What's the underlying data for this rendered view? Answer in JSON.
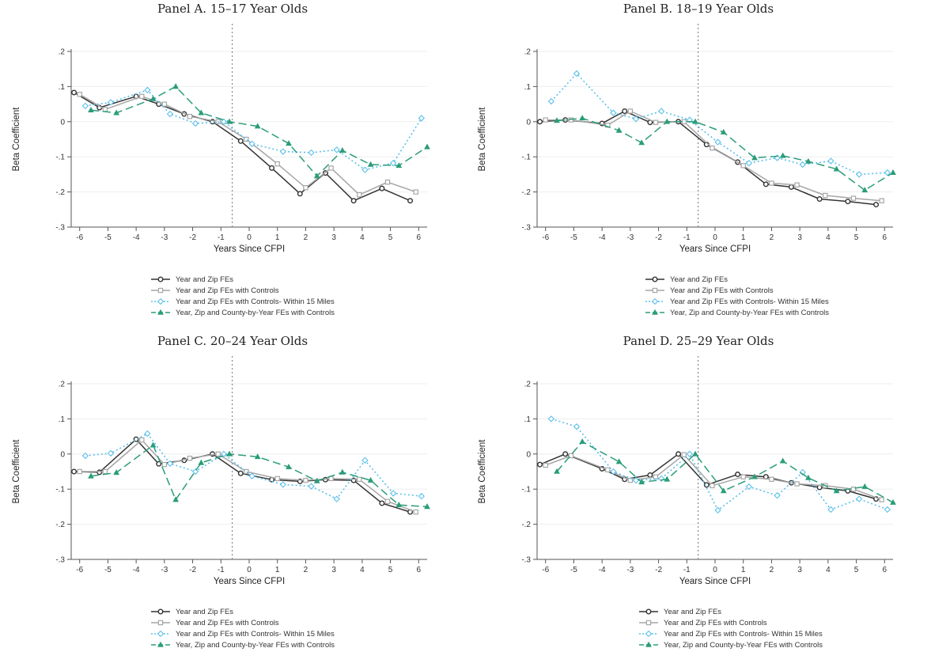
{
  "legend_labels": [
    "Year and Zip FEs",
    "Year and Zip FEs with Controls",
    "Year and Zip FEs with Controls- Within 15 Miles",
    "Year, Zip and County-by-Year FEs with Controls"
  ],
  "series_styles": [
    {
      "color": "#333333",
      "dash": "none",
      "marker": "circle"
    },
    {
      "color": "#a6a6a6",
      "dash": "none",
      "marker": "square"
    },
    {
      "color": "#5bc0eb",
      "dash": "2,3",
      "marker": "diamond"
    },
    {
      "color": "#2a9d7a",
      "dash": "10,5",
      "marker": "triangle"
    }
  ],
  "chart_data": [
    {
      "type": "line",
      "title": "Panel A. 15–17 Year Olds",
      "xlabel": "Years Since CFPI",
      "ylabel": "Beta Coefficient",
      "xlim": [
        -6.3,
        6.3
      ],
      "ylim": [
        -0.3,
        0.2
      ],
      "xticks": [
        "-6",
        "-5",
        "-4",
        "-3",
        "-2",
        "-1",
        "0",
        "1",
        "2",
        "3",
        "4",
        "5",
        "6"
      ],
      "yticks": [
        ".2",
        ".1",
        "0",
        "-.1",
        "-.2",
        "-.3"
      ],
      "vline": -0.6,
      "grid": true,
      "legend": "bottom",
      "series": [
        {
          "name": "Year and Zip FEs",
          "x": [
            -6.2,
            -5.3,
            -4.0,
            -3.2,
            -2.3,
            -1.3,
            -0.3,
            0.8,
            1.8,
            2.7,
            3.7,
            4.7,
            5.7
          ],
          "y": [
            0.083,
            0.04,
            0.072,
            0.05,
            0.022,
            0.0,
            -0.055,
            -0.132,
            -0.205,
            -0.146,
            -0.225,
            -0.19,
            -0.225
          ]
        },
        {
          "name": "Year and Zip FEs with Controls",
          "x": [
            -6.0,
            -5.1,
            -3.8,
            -3.0,
            -2.1,
            -1.1,
            -0.1,
            1.0,
            2.0,
            2.9,
            3.9,
            4.9,
            5.9
          ],
          "y": [
            0.078,
            0.035,
            0.072,
            0.05,
            0.015,
            0.0,
            -0.05,
            -0.12,
            -0.188,
            -0.132,
            -0.208,
            -0.172,
            -0.2
          ]
        },
        {
          "name": "Year and Zip FEs with Controls- Within 15 Miles",
          "x": [
            -5.8,
            -4.9,
            -3.6,
            -2.8,
            -1.9,
            -0.9,
            0.1,
            1.2,
            2.2,
            3.1,
            4.1,
            5.1,
            6.1
          ],
          "y": [
            0.045,
            0.055,
            0.09,
            0.022,
            -0.005,
            0.0,
            -0.063,
            -0.085,
            -0.088,
            -0.08,
            -0.137,
            -0.118,
            0.01
          ]
        },
        {
          "name": "Year, Zip and County-by-Year FEs with Controls",
          "x": [
            -5.6,
            -4.7,
            -3.4,
            -2.6,
            -1.7,
            -0.7,
            0.3,
            1.4,
            2.4,
            3.3,
            4.3,
            5.3,
            6.3
          ],
          "y": [
            0.033,
            0.025,
            0.065,
            0.1,
            0.025,
            0.0,
            -0.013,
            -0.062,
            -0.155,
            -0.082,
            -0.122,
            -0.125,
            -0.072
          ]
        }
      ]
    },
    {
      "type": "line",
      "title": "Panel B. 18–19 Year Olds",
      "xlabel": "Years Since CFPI",
      "ylabel": "Beta Coefficient",
      "xlim": [
        -6.3,
        6.3
      ],
      "ylim": [
        -0.3,
        0.2
      ],
      "xticks": [
        "-6",
        "-5",
        "-4",
        "-3",
        "-2",
        "-1",
        "0",
        "1",
        "2",
        "3",
        "4",
        "5",
        "6"
      ],
      "yticks": [
        ".2",
        ".1",
        "0",
        "-.1",
        "-.2",
        "-.3"
      ],
      "vline": -0.6,
      "grid": true,
      "legend": "bottom",
      "series": [
        {
          "name": "Year and Zip FEs",
          "x": [
            -6.2,
            -5.3,
            -4.0,
            -3.2,
            -2.3,
            -1.3,
            -0.3,
            0.8,
            1.8,
            2.7,
            3.7,
            4.7,
            5.7
          ],
          "y": [
            0.0,
            0.005,
            -0.005,
            0.03,
            -0.002,
            0.0,
            -0.065,
            -0.115,
            -0.178,
            -0.186,
            -0.22,
            -0.227,
            -0.236
          ]
        },
        {
          "name": "Year and Zip FEs with Controls",
          "x": [
            -6.0,
            -5.1,
            -3.8,
            -3.0,
            -2.1,
            -1.1,
            -0.1,
            1.0,
            2.0,
            2.9,
            3.9,
            4.9,
            5.9
          ],
          "y": [
            0.005,
            0.005,
            -0.01,
            0.03,
            -0.002,
            0.0,
            -0.075,
            -0.125,
            -0.175,
            -0.18,
            -0.21,
            -0.218,
            -0.225
          ]
        },
        {
          "name": "Year and Zip FEs with Controls- Within 15 Miles",
          "x": [
            -5.8,
            -4.9,
            -3.6,
            -2.8,
            -1.9,
            -0.9,
            0.1,
            1.2,
            2.2,
            3.1,
            4.1,
            5.1,
            6.1
          ],
          "y": [
            0.058,
            0.137,
            0.025,
            0.008,
            0.03,
            0.005,
            -0.058,
            -0.118,
            -0.103,
            -0.122,
            -0.112,
            -0.15,
            -0.145
          ]
        },
        {
          "name": "Year, Zip and County-by-Year FEs with Controls",
          "x": [
            -5.6,
            -4.7,
            -3.4,
            -2.6,
            -1.7,
            -0.7,
            0.3,
            1.4,
            2.4,
            3.3,
            4.3,
            5.3,
            6.3
          ],
          "y": [
            0.003,
            0.01,
            -0.025,
            -0.06,
            0.0,
            0.0,
            -0.03,
            -0.103,
            -0.097,
            -0.113,
            -0.135,
            -0.195,
            -0.145
          ]
        }
      ]
    },
    {
      "type": "line",
      "title": "Panel C. 20–24 Year Olds",
      "xlabel": "Years Since CFPI",
      "ylabel": "Beta Coefficient",
      "xlim": [
        -6.3,
        6.3
      ],
      "ylim": [
        -0.3,
        0.2
      ],
      "xticks": [
        "-6",
        "-5",
        "-4",
        "-3",
        "-2",
        "-1",
        "0",
        "1",
        "2",
        "3",
        "4",
        "5",
        "6"
      ],
      "yticks": [
        ".2",
        ".1",
        "0",
        "-.1",
        "-.2",
        "-.3"
      ],
      "vline": -0.6,
      "grid": true,
      "legend": "bottom",
      "series": [
        {
          "name": "Year and Zip FEs",
          "x": [
            -6.2,
            -5.3,
            -4.0,
            -3.2,
            -2.3,
            -1.3,
            -0.3,
            0.8,
            1.8,
            2.7,
            3.7,
            4.7,
            5.7
          ],
          "y": [
            -0.05,
            -0.052,
            0.042,
            -0.028,
            -0.018,
            0.0,
            -0.055,
            -0.073,
            -0.078,
            -0.073,
            -0.075,
            -0.14,
            -0.165
          ]
        },
        {
          "name": "Year and Zip FEs with Controls",
          "x": [
            -6.0,
            -5.1,
            -3.8,
            -3.0,
            -2.1,
            -1.1,
            -0.1,
            1.0,
            2.0,
            2.9,
            3.9,
            4.9,
            5.9
          ],
          "y": [
            -0.05,
            -0.05,
            0.04,
            -0.03,
            -0.012,
            0.0,
            -0.05,
            -0.07,
            -0.075,
            -0.07,
            -0.072,
            -0.135,
            -0.165
          ]
        },
        {
          "name": "Year and Zip FEs with Controls- Within 15 Miles",
          "x": [
            -5.8,
            -4.9,
            -3.6,
            -2.8,
            -1.9,
            -0.9,
            0.1,
            1.2,
            2.2,
            3.1,
            4.1,
            5.1,
            6.1
          ],
          "y": [
            -0.005,
            0.002,
            0.058,
            -0.027,
            -0.05,
            0.0,
            -0.063,
            -0.087,
            -0.092,
            -0.128,
            -0.018,
            -0.112,
            -0.12
          ]
        },
        {
          "name": "Year, Zip and County-by-Year FEs with Controls",
          "x": [
            -5.6,
            -4.7,
            -3.4,
            -2.6,
            -1.7,
            -0.7,
            0.3,
            1.4,
            2.4,
            3.3,
            4.3,
            5.3,
            6.3
          ],
          "y": [
            -0.063,
            -0.053,
            0.025,
            -0.13,
            -0.025,
            0.0,
            -0.008,
            -0.037,
            -0.077,
            -0.052,
            -0.075,
            -0.145,
            -0.15
          ]
        }
      ]
    },
    {
      "type": "line",
      "title": "Panel D. 25–29 Year Olds",
      "xlabel": "Years Since CFPI",
      "ylabel": "Beta Coefficient",
      "xlim": [
        -6.3,
        6.3
      ],
      "ylim": [
        -0.3,
        0.2
      ],
      "xticks": [
        "-6",
        "-5",
        "-4",
        "-3",
        "-2",
        "-1",
        "0",
        "1",
        "2",
        "3",
        "4",
        "5",
        "6"
      ],
      "yticks": [
        ".2",
        ".1",
        "0",
        "-.1",
        "-.2",
        "-.3"
      ],
      "vline": -0.6,
      "grid": true,
      "legend": "bottom",
      "series": [
        {
          "name": "Year and Zip FEs",
          "x": [
            -6.2,
            -5.3,
            -4.0,
            -3.2,
            -2.3,
            -1.3,
            -0.3,
            0.8,
            1.8,
            2.7,
            3.7,
            4.7,
            5.7
          ],
          "y": [
            -0.03,
            0.0,
            -0.042,
            -0.072,
            -0.06,
            0.0,
            -0.088,
            -0.058,
            -0.065,
            -0.082,
            -0.095,
            -0.105,
            -0.128
          ]
        },
        {
          "name": "Year and Zip FEs with Controls",
          "x": [
            -6.0,
            -5.1,
            -3.8,
            -3.0,
            -2.1,
            -1.1,
            -0.1,
            1.0,
            2.0,
            2.9,
            3.9,
            4.9,
            5.9
          ],
          "y": [
            -0.032,
            -0.005,
            -0.045,
            -0.075,
            -0.065,
            -0.002,
            -0.09,
            -0.065,
            -0.072,
            -0.085,
            -0.09,
            -0.1,
            -0.13
          ]
        },
        {
          "name": "Year and Zip FEs with Controls- Within 15 Miles",
          "x": [
            -5.8,
            -4.9,
            -3.6,
            -2.8,
            -1.9,
            -0.9,
            0.1,
            1.2,
            2.2,
            3.1,
            4.1,
            5.1,
            6.1
          ],
          "y": [
            0.1,
            0.078,
            -0.05,
            -0.075,
            -0.07,
            0.0,
            -0.16,
            -0.093,
            -0.118,
            -0.052,
            -0.158,
            -0.128,
            -0.158
          ]
        },
        {
          "name": "Year, Zip and County-by-Year FEs with Controls",
          "x": [
            -5.6,
            -4.7,
            -3.4,
            -2.6,
            -1.7,
            -0.7,
            0.3,
            1.4,
            2.4,
            3.3,
            4.3,
            5.3,
            6.3
          ],
          "y": [
            -0.05,
            0.035,
            -0.022,
            -0.08,
            -0.072,
            0.0,
            -0.105,
            -0.065,
            -0.02,
            -0.068,
            -0.105,
            -0.093,
            -0.138
          ]
        }
      ]
    }
  ]
}
